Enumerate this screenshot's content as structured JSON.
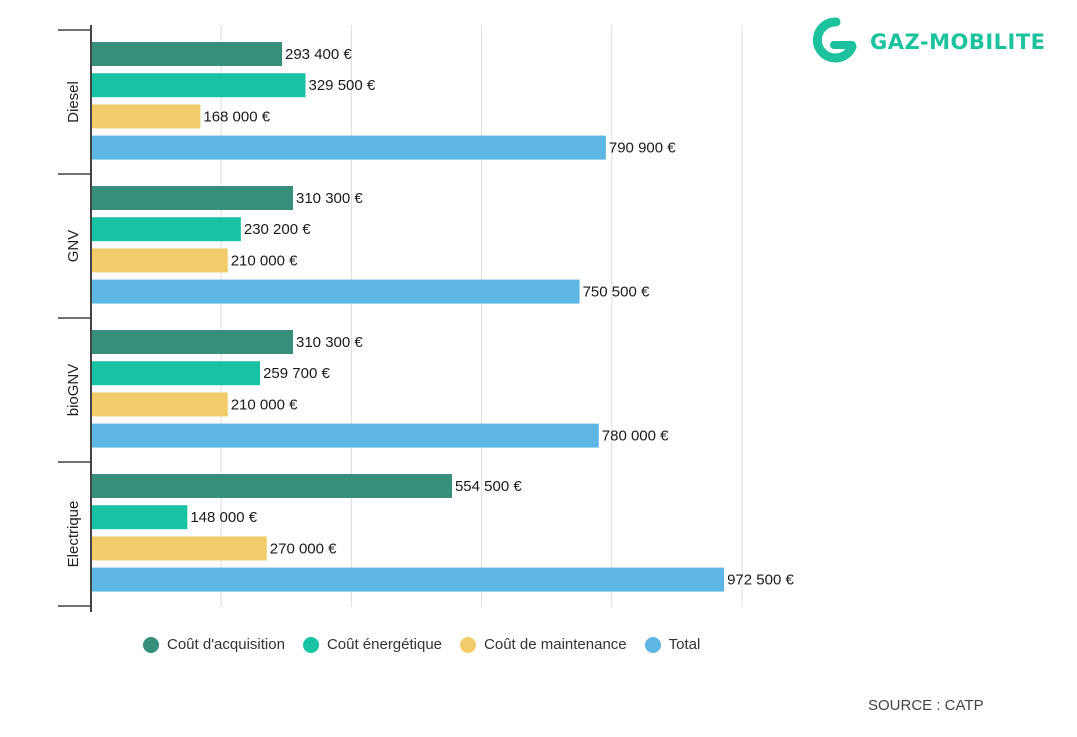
{
  "logo": {
    "text": "GAZ-MOBILITE",
    "color": "#1cc29e",
    "icon": "g-logo-icon"
  },
  "source": "SOURCE : CATP",
  "chart_data": {
    "type": "bar",
    "orientation": "horizontal",
    "categories": [
      "Diesel",
      "GNV",
      "bioGNV",
      "Electrique"
    ],
    "series": [
      {
        "name": "Coût d'acquisition",
        "color": "#368f7b",
        "values": [
          293400,
          310300,
          310300,
          554500
        ],
        "labels": [
          "293 400 €",
          "310 300 €",
          "310 300 €",
          "554 500 €"
        ]
      },
      {
        "name": "Coût énergétique",
        "color": "#18c3a3",
        "values": [
          329500,
          230200,
          259700,
          148000
        ],
        "labels": [
          "329 500 €",
          "230 200 €",
          "259 700 €",
          "148 000 €"
        ]
      },
      {
        "name": "Coût de maintenance",
        "color": "#f0cd6a",
        "values": [
          168000,
          210000,
          210000,
          270000
        ],
        "labels": [
          "168 000 €",
          "210 000 €",
          "210 000 €",
          "270 000 €"
        ]
      },
      {
        "name": "Total",
        "color": "#5eb6e5",
        "values": [
          790900,
          750500,
          780000,
          972500
        ],
        "labels": [
          "790 900 €",
          "750 500 €",
          "780 000 €",
          "972 500 €"
        ]
      }
    ],
    "xlim": [
      0,
      1000000
    ],
    "x_gridlines": [
      200000,
      400000,
      600000,
      800000,
      1000000
    ],
    "grid": true,
    "legend_position": "bottom"
  }
}
